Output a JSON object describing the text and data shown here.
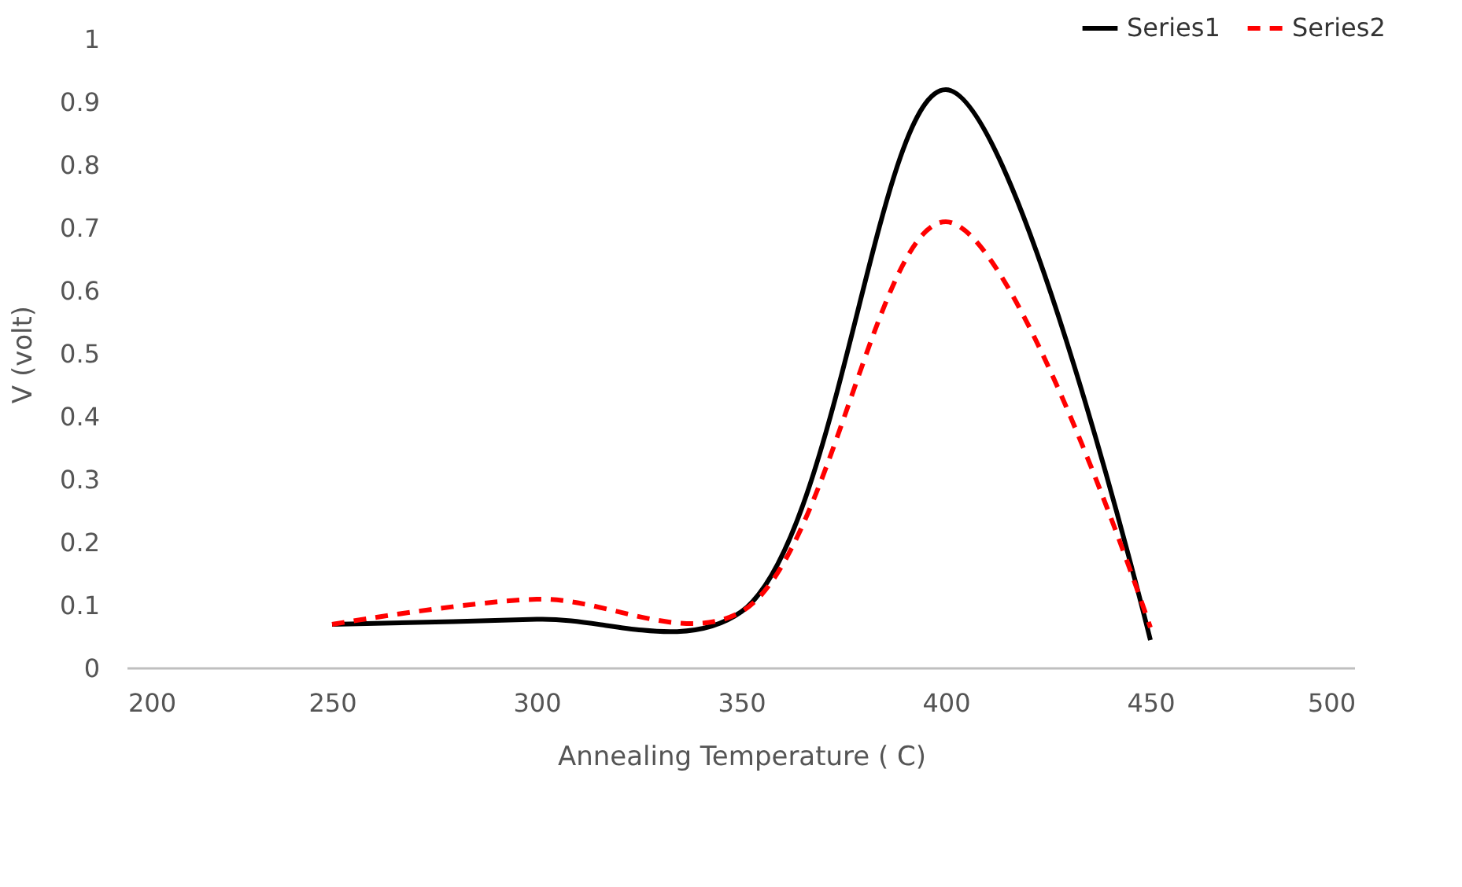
{
  "chart_data": {
    "type": "line",
    "xlabel": "Annealing Temperature (  C)",
    "ylabel": "V (volt)",
    "x": [
      250,
      300,
      350,
      400,
      450
    ],
    "series": [
      {
        "name": "Series1",
        "color": "#000000",
        "line_style": "solid",
        "values": [
          0.07,
          0.078,
          0.09,
          0.92,
          0.045
        ]
      },
      {
        "name": "Series2",
        "color": "#ff0000",
        "line_style": "dashed",
        "values": [
          0.07,
          0.11,
          0.09,
          0.71,
          0.065
        ]
      }
    ],
    "xlim": [
      200,
      500
    ],
    "xticks": [
      200,
      250,
      300,
      350,
      400,
      450,
      500
    ],
    "ylim": [
      0,
      1
    ],
    "yticks": [
      0,
      0.1,
      0.2,
      0.3,
      0.4,
      0.5,
      0.6,
      0.7,
      0.8,
      0.9,
      1
    ],
    "grid": false,
    "legend": "top right",
    "marker": "none"
  }
}
